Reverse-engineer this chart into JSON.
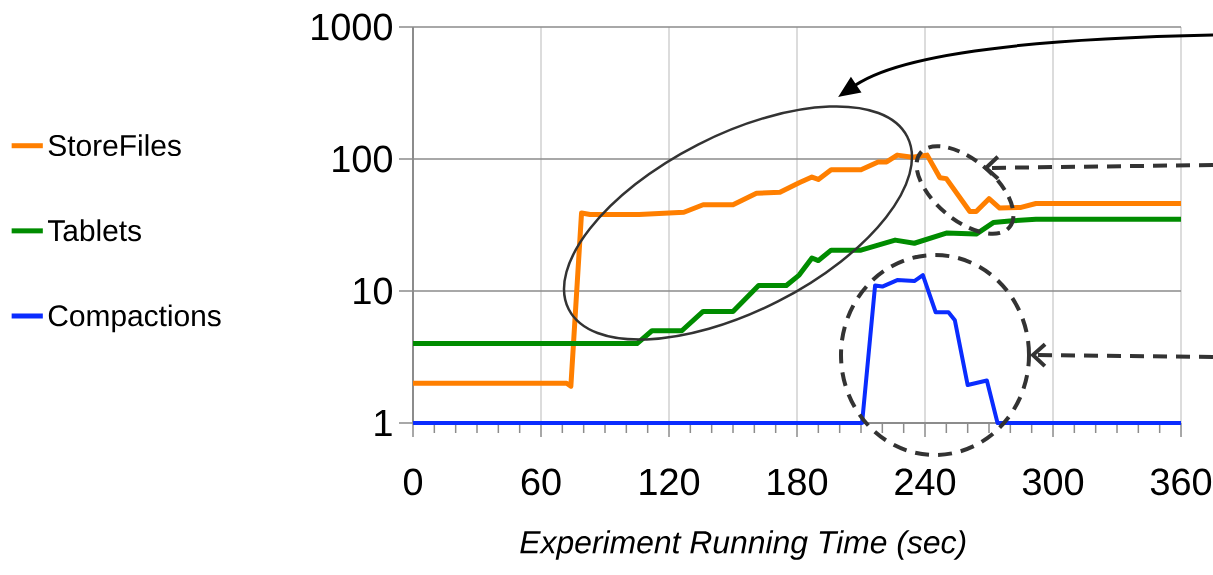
{
  "chart_data": {
    "type": "line",
    "xlabel": "Experiment Running Time (sec)",
    "xlim": [
      0,
      360
    ],
    "xticks": [
      0,
      60,
      120,
      180,
      240,
      300,
      360
    ],
    "ylim": [
      1,
      1000
    ],
    "yticks": [
      1,
      10,
      100,
      1000
    ],
    "log": "y",
    "grid": true,
    "legend": "left",
    "marker": "none",
    "line_style": "solid",
    "series": [
      {
        "name": "StoreFiles",
        "color": "#ff7f00",
        "x": [
          0,
          72,
          74,
          79,
          83,
          106,
          127,
          136,
          150,
          161,
          172,
          181,
          187,
          190,
          196,
          210,
          218,
          222,
          227,
          234,
          241,
          247,
          250,
          261,
          264,
          270,
          275,
          285,
          292,
          360
        ],
        "values": [
          2,
          2,
          1.9,
          39,
          38,
          38,
          39.5,
          45,
          45,
          55,
          56,
          66,
          73,
          70,
          83,
          83,
          95,
          95,
          107,
          103,
          107,
          72,
          71,
          40,
          40,
          50,
          42.5,
          43,
          46,
          46
        ]
      },
      {
        "name": "Tablets",
        "color": "#008c00",
        "x": [
          0,
          105,
          112,
          126,
          136,
          150,
          162,
          175,
          181,
          187,
          190,
          196,
          210,
          218,
          226,
          235,
          250,
          264,
          272,
          281,
          292,
          360
        ],
        "values": [
          4,
          4,
          5,
          5,
          7,
          7,
          11,
          11,
          13.2,
          17.8,
          17,
          20.4,
          20.4,
          22.3,
          24.3,
          23,
          27.5,
          27,
          33,
          34,
          35,
          35
        ]
      },
      {
        "name": "Compactions",
        "color": "#0a2cff",
        "x": [
          0,
          210.5,
          216.6,
          220,
          227,
          235,
          239,
          245,
          251,
          254,
          260,
          269,
          274,
          360
        ],
        "values": [
          1,
          1,
          11,
          10.8,
          12.1,
          11.9,
          13.2,
          6.9,
          6.9,
          6,
          1.94,
          2.1,
          1,
          1
        ]
      }
    ]
  }
}
